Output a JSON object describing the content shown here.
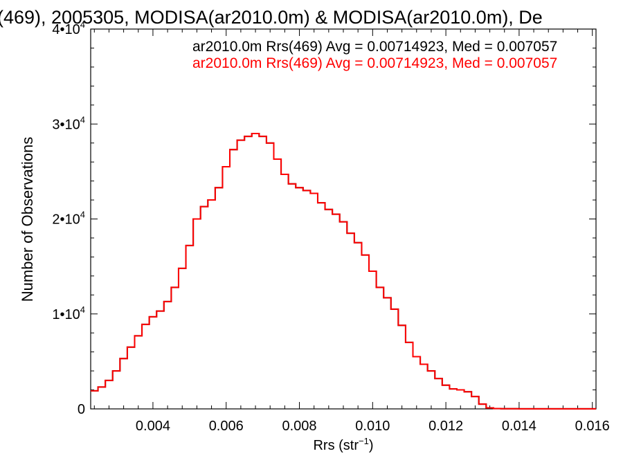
{
  "chart_data": {
    "type": "line",
    "title": "(469), 2005305, MODISA(ar2010.0m) & MODISA(ar2010.0m), De",
    "xlabel": "Rrs (str",
    "xlabel_exp": "−1",
    "xlabel_close": ")",
    "ylabel": "Number of Observations",
    "xlim": [
      0.0023,
      0.0161
    ],
    "ylim": [
      0,
      40000
    ],
    "x_ticks": [
      0.004,
      0.006,
      0.008,
      0.01,
      0.012,
      0.014,
      0.016
    ],
    "x_tick_labels": [
      "0.004",
      "0.006",
      "0.008",
      "0.010",
      "0.012",
      "0.014",
      "0.016"
    ],
    "y_ticks": [
      {
        "value": 0,
        "mant": "0",
        "exp": ""
      },
      {
        "value": 10000,
        "mant": "1•10",
        "exp": "4"
      },
      {
        "value": 20000,
        "mant": "2•10",
        "exp": "4"
      },
      {
        "value": 30000,
        "mant": "3•10",
        "exp": "4"
      },
      {
        "value": 40000,
        "mant": "4•10",
        "exp": "4"
      }
    ],
    "grid": false,
    "legend_position": "top-right",
    "series": [
      {
        "name": "ar2010.0m Rrs(469) Avg = 0.00714923, Med = 0.007057",
        "color": "#000000",
        "x": [
          0.0023,
          0.0025,
          0.0027,
          0.0029,
          0.0031,
          0.0033,
          0.0035,
          0.0037,
          0.0039,
          0.0041,
          0.0043,
          0.0045,
          0.0047,
          0.0049,
          0.0051,
          0.0053,
          0.0055,
          0.0057,
          0.0059,
          0.0061,
          0.0063,
          0.0065,
          0.0067,
          0.0069,
          0.0071,
          0.0073,
          0.0075,
          0.0077,
          0.0079,
          0.0081,
          0.0083,
          0.0085,
          0.0087,
          0.0089,
          0.0091,
          0.0093,
          0.0095,
          0.0097,
          0.0099,
          0.0101,
          0.0103,
          0.0105,
          0.0107,
          0.0109,
          0.0111,
          0.0113,
          0.0115,
          0.0117,
          0.0119,
          0.0121,
          0.0123,
          0.0125,
          0.0127,
          0.0129,
          0.0131,
          0.0133,
          0.0135,
          0.014,
          0.015,
          0.0161
        ],
        "y": [
          1900,
          2300,
          3000,
          4000,
          5300,
          6500,
          7700,
          8900,
          9700,
          10300,
          11300,
          12800,
          14800,
          17200,
          20000,
          21300,
          22000,
          23300,
          25500,
          27300,
          28300,
          28700,
          29000,
          28700,
          28000,
          26300,
          24700,
          23700,
          23300,
          23000,
          22700,
          21700,
          21000,
          20500,
          19700,
          18500,
          17500,
          16200,
          14500,
          12800,
          11700,
          10500,
          8800,
          7000,
          5500,
          4700,
          4000,
          3200,
          2500,
          2100,
          2000,
          1800,
          1300,
          500,
          100,
          40,
          20,
          10,
          10,
          10
        ]
      },
      {
        "name": "ar2010.0m Rrs(469) Avg = 0.00714923, Med = 0.007057",
        "color": "#ff0000",
        "x": [
          0.0023,
          0.0025,
          0.0027,
          0.0029,
          0.0031,
          0.0033,
          0.0035,
          0.0037,
          0.0039,
          0.0041,
          0.0043,
          0.0045,
          0.0047,
          0.0049,
          0.0051,
          0.0053,
          0.0055,
          0.0057,
          0.0059,
          0.0061,
          0.0063,
          0.0065,
          0.0067,
          0.0069,
          0.0071,
          0.0073,
          0.0075,
          0.0077,
          0.0079,
          0.0081,
          0.0083,
          0.0085,
          0.0087,
          0.0089,
          0.0091,
          0.0093,
          0.0095,
          0.0097,
          0.0099,
          0.0101,
          0.0103,
          0.0105,
          0.0107,
          0.0109,
          0.0111,
          0.0113,
          0.0115,
          0.0117,
          0.0119,
          0.0121,
          0.0123,
          0.0125,
          0.0127,
          0.0129,
          0.0131,
          0.0133,
          0.0135,
          0.014,
          0.015,
          0.0161
        ],
        "y": [
          1900,
          2300,
          3000,
          4000,
          5300,
          6500,
          7700,
          8900,
          9700,
          10300,
          11300,
          12800,
          14800,
          17200,
          20000,
          21300,
          22000,
          23300,
          25500,
          27300,
          28300,
          28700,
          29000,
          28700,
          28000,
          26300,
          24700,
          23700,
          23300,
          23000,
          22700,
          21700,
          21000,
          20500,
          19700,
          18500,
          17500,
          16200,
          14500,
          12800,
          11700,
          10500,
          8800,
          7000,
          5500,
          4700,
          4000,
          3200,
          2500,
          2100,
          2000,
          1800,
          1300,
          500,
          100,
          40,
          20,
          10,
          10,
          10
        ]
      }
    ]
  }
}
